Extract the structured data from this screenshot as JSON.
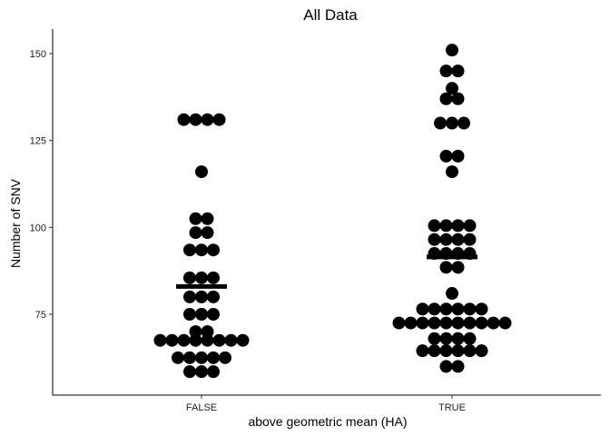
{
  "chart_data": {
    "type": "scatter",
    "title": "All Data",
    "xlabel": "above geometric mean (HA)",
    "ylabel": "Number of SNV",
    "categories": [
      "FALSE",
      "TRUE"
    ],
    "yticks": [
      75,
      100,
      125,
      150
    ],
    "ylim": [
      55,
      157
    ],
    "grid": false,
    "legend": "none",
    "point_color": "#000000",
    "series": [
      {
        "category": "FALSE",
        "mean": 83,
        "points": [
          {
            "y": 131,
            "n": 4
          },
          {
            "y": 116,
            "n": 1
          },
          {
            "y": 102.5,
            "n": 2
          },
          {
            "y": 98.5,
            "n": 2
          },
          {
            "y": 93.5,
            "n": 3
          },
          {
            "y": 85.5,
            "n": 3
          },
          {
            "y": 80,
            "n": 3
          },
          {
            "y": 75,
            "n": 3
          },
          {
            "y": 70,
            "n": 2
          },
          {
            "y": 67.5,
            "n": 8
          },
          {
            "y": 62.5,
            "n": 5
          },
          {
            "y": 58.5,
            "n": 3
          }
        ]
      },
      {
        "category": "TRUE",
        "mean": 91.5,
        "points": [
          {
            "y": 151,
            "n": 1
          },
          {
            "y": 145,
            "n": 2
          },
          {
            "y": 140,
            "n": 1
          },
          {
            "y": 137,
            "n": 2
          },
          {
            "y": 130,
            "n": 3
          },
          {
            "y": 120.5,
            "n": 2
          },
          {
            "y": 116,
            "n": 1
          },
          {
            "y": 100.5,
            "n": 4
          },
          {
            "y": 96.5,
            "n": 4
          },
          {
            "y": 92.5,
            "n": 4
          },
          {
            "y": 88.5,
            "n": 2
          },
          {
            "y": 81,
            "n": 1
          },
          {
            "y": 76.5,
            "n": 6
          },
          {
            "y": 72.5,
            "n": 10
          },
          {
            "y": 68,
            "n": 4
          },
          {
            "y": 64.5,
            "n": 6
          },
          {
            "y": 60,
            "n": 2
          }
        ]
      }
    ]
  }
}
